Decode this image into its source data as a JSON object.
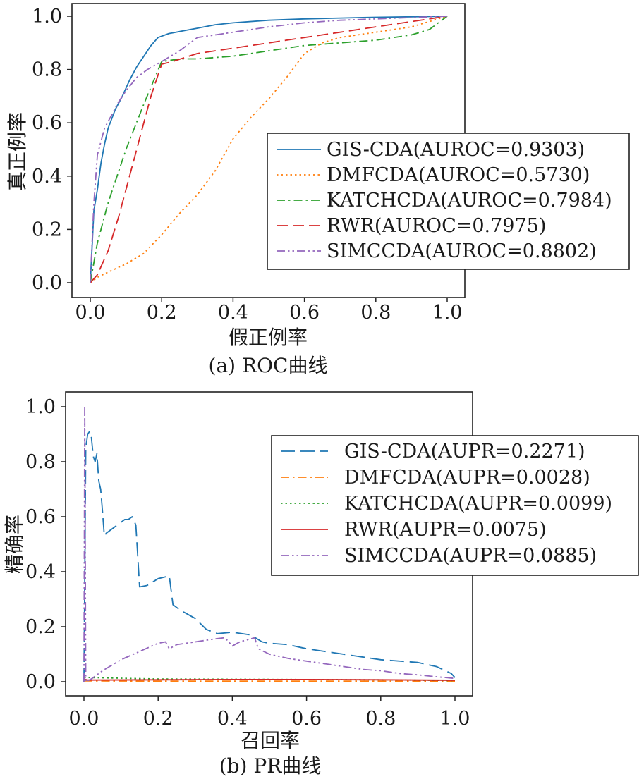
{
  "chart_data": [
    {
      "id": "roc",
      "type": "line",
      "caption": "(a) ROC曲线",
      "xlabel": "假正例率",
      "ylabel": "真正例率",
      "xlim": [
        0,
        1
      ],
      "ylim": [
        0,
        1
      ],
      "xticks": [
        "0.0",
        "0.2",
        "0.4",
        "0.6",
        "0.8",
        "1.0"
      ],
      "yticks": [
        "0.0",
        "0.2",
        "0.4",
        "0.6",
        "0.8",
        "1.0"
      ],
      "grid": false,
      "legend_position": "center-right",
      "series": [
        {
          "name": "GIS-CDA(AUROC=0.9303)",
          "color": "#1f77b4",
          "dash": "solid",
          "x": [
            0,
            0.01,
            0.02,
            0.03,
            0.04,
            0.05,
            0.07,
            0.09,
            0.11,
            0.13,
            0.15,
            0.17,
            0.19,
            0.22,
            0.26,
            0.3,
            0.35,
            0.4,
            0.5,
            0.6,
            0.7,
            0.8,
            0.9,
            1.0
          ],
          "y": [
            0,
            0.27,
            0.35,
            0.45,
            0.52,
            0.58,
            0.65,
            0.7,
            0.76,
            0.81,
            0.85,
            0.89,
            0.92,
            0.935,
            0.945,
            0.955,
            0.968,
            0.975,
            0.985,
            0.99,
            0.993,
            0.996,
            0.998,
            1.0
          ]
        },
        {
          "name": "DMFCDA(AUROC=0.5730)",
          "color": "#ff7f0e",
          "dash": "dotted",
          "x": [
            0,
            0.02,
            0.05,
            0.1,
            0.15,
            0.2,
            0.25,
            0.3,
            0.35,
            0.4,
            0.45,
            0.5,
            0.55,
            0.6,
            0.65,
            0.7,
            0.8,
            0.9,
            1.0
          ],
          "y": [
            0,
            0.02,
            0.04,
            0.07,
            0.11,
            0.18,
            0.26,
            0.33,
            0.42,
            0.54,
            0.62,
            0.69,
            0.77,
            0.86,
            0.9,
            0.92,
            0.94,
            0.96,
            1.0
          ]
        },
        {
          "name": "KATCHCDA(AUROC=0.7984)",
          "color": "#2ca02c",
          "dash": "dashdot",
          "x": [
            0,
            0.02,
            0.05,
            0.1,
            0.15,
            0.2,
            0.25,
            0.3,
            0.4,
            0.5,
            0.6,
            0.7,
            0.8,
            0.9,
            0.95,
            1.0
          ],
          "y": [
            0,
            0.15,
            0.3,
            0.5,
            0.67,
            0.83,
            0.84,
            0.84,
            0.85,
            0.87,
            0.89,
            0.9,
            0.91,
            0.93,
            0.95,
            1.0
          ]
        },
        {
          "name": "RWR(AUROC=0.7975)",
          "color": "#d62728",
          "dash": "dashed",
          "x": [
            0,
            0.02,
            0.05,
            0.08,
            0.11,
            0.14,
            0.17,
            0.2,
            0.23,
            0.3,
            0.4,
            0.5,
            0.6,
            0.7,
            0.8,
            0.9,
            1.0
          ],
          "y": [
            0,
            0.03,
            0.12,
            0.25,
            0.4,
            0.55,
            0.7,
            0.82,
            0.83,
            0.86,
            0.88,
            0.9,
            0.92,
            0.94,
            0.96,
            0.98,
            1.0
          ]
        },
        {
          "name": "SIMCCDA(AUROC=0.8802)",
          "color": "#9467bd",
          "dash": "dashdotdot",
          "x": [
            0,
            0.01,
            0.02,
            0.04,
            0.06,
            0.08,
            0.1,
            0.13,
            0.16,
            0.2,
            0.25,
            0.3,
            0.35,
            0.4,
            0.5,
            0.6,
            0.7,
            0.8,
            0.9,
            1.0
          ],
          "y": [
            0,
            0.3,
            0.48,
            0.58,
            0.63,
            0.68,
            0.72,
            0.77,
            0.8,
            0.83,
            0.87,
            0.92,
            0.93,
            0.94,
            0.96,
            0.975,
            0.985,
            0.99,
            0.995,
            1.0
          ]
        }
      ]
    },
    {
      "id": "pr",
      "type": "line",
      "caption": "(b) PR曲线",
      "xlabel": "召回率",
      "ylabel": "精确率",
      "xlim": [
        0,
        1
      ],
      "ylim": [
        0,
        1
      ],
      "xticks": [
        "0.0",
        "0.2",
        "0.4",
        "0.6",
        "0.8",
        "1.0"
      ],
      "yticks": [
        "0.0",
        "0.2",
        "0.4",
        "0.6",
        "0.8",
        "1.0"
      ],
      "grid": false,
      "legend_position": "upper-right",
      "series": [
        {
          "name": "GIS-CDA(AUPR=0.2271)",
          "color": "#1f77b4",
          "dash": "longdash",
          "x": [
            0,
            0.005,
            0.01,
            0.015,
            0.02,
            0.025,
            0.03,
            0.035,
            0.04,
            0.045,
            0.05,
            0.055,
            0.06,
            0.07,
            0.08,
            0.09,
            0.1,
            0.11,
            0.12,
            0.13,
            0.14,
            0.15,
            0.17,
            0.2,
            0.23,
            0.24,
            0.26,
            0.3,
            0.33,
            0.36,
            0.4,
            0.45,
            0.48,
            0.5,
            0.55,
            0.6,
            0.7,
            0.8,
            0.9,
            0.95,
            0.99,
            1.0
          ],
          "y": [
            0,
            0.85,
            0.9,
            0.91,
            0.89,
            0.82,
            0.8,
            0.83,
            0.73,
            0.7,
            0.62,
            0.53,
            0.54,
            0.55,
            0.56,
            0.57,
            0.58,
            0.59,
            0.59,
            0.6,
            0.57,
            0.345,
            0.35,
            0.375,
            0.385,
            0.28,
            0.26,
            0.23,
            0.19,
            0.175,
            0.18,
            0.17,
            0.145,
            0.14,
            0.135,
            0.12,
            0.1,
            0.08,
            0.07,
            0.055,
            0.03,
            0.015
          ]
        },
        {
          "name": "DMFCDA(AUPR=0.0028)",
          "color": "#ff7f0e",
          "dash": "dashdot",
          "x": [
            0,
            0.01,
            0.2,
            0.4,
            0.6,
            0.8,
            1.0
          ],
          "y": [
            0.003,
            0.003,
            0.002,
            0.002,
            0.002,
            0.002,
            0.002
          ]
        },
        {
          "name": "KATCHCDA(AUPR=0.0099)",
          "color": "#2ca02c",
          "dash": "dotted",
          "x": [
            0,
            0.01,
            0.2,
            0.4,
            0.6,
            0.8,
            1.0
          ],
          "y": [
            0.015,
            0.015,
            0.01,
            0.009,
            0.008,
            0.007,
            0.004
          ]
        },
        {
          "name": "RWR(AUPR=0.0075)",
          "color": "#d62728",
          "dash": "solid",
          "x": [
            0,
            0.01,
            0.2,
            0.4,
            0.6,
            0.8,
            1.0
          ],
          "y": [
            0.01,
            0.006,
            0.007,
            0.008,
            0.008,
            0.007,
            0.005
          ]
        },
        {
          "name": "SIMCCDA(AUPR=0.0885)",
          "color": "#9467bd",
          "dash": "dashdotdot",
          "x": [
            0,
            0.002,
            0.005,
            0.02,
            0.05,
            0.1,
            0.15,
            0.2,
            0.22,
            0.23,
            0.25,
            0.3,
            0.35,
            0.38,
            0.4,
            0.42,
            0.46,
            0.47,
            0.5,
            0.55,
            0.6,
            0.65,
            0.7,
            0.75,
            0.8,
            0.85,
            0.9,
            0.95,
            1.0
          ],
          "y": [
            0,
            1.0,
            0.0,
            0.01,
            0.04,
            0.08,
            0.11,
            0.14,
            0.145,
            0.12,
            0.135,
            0.145,
            0.155,
            0.16,
            0.13,
            0.145,
            0.16,
            0.12,
            0.1,
            0.085,
            0.075,
            0.065,
            0.055,
            0.045,
            0.04,
            0.03,
            0.025,
            0.018,
            0.012
          ]
        }
      ]
    }
  ]
}
